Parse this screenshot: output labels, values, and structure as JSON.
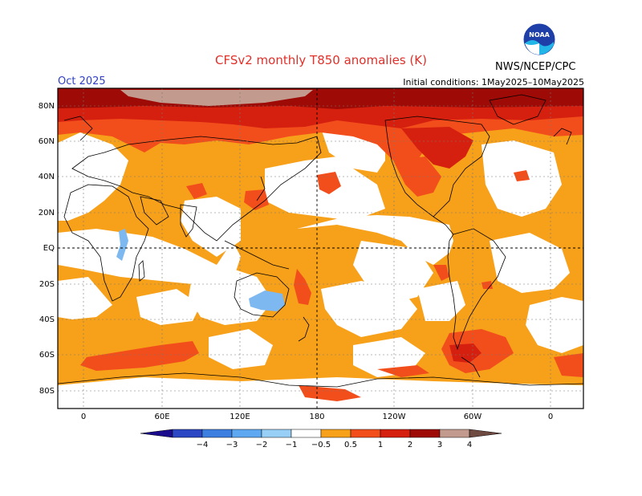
{
  "header": {
    "title": "CFSv2 monthly T850 anomalies (K)",
    "month": "Oct 2025",
    "initial_conditions": "Initial conditions: 1May2025–10May2025",
    "agency": "NWS/NCEP/CPC",
    "logo_text": "NOAA"
  },
  "map": {
    "lat_labels": [
      "80N",
      "60N",
      "40N",
      "20N",
      "EQ",
      "20S",
      "40S",
      "60S",
      "80S"
    ],
    "lon_labels": [
      "0",
      "60E",
      "120E",
      "180",
      "120W",
      "60W",
      "0"
    ]
  },
  "colorbar": {
    "labels": [
      "−4",
      "−3",
      "−2",
      "−1",
      "−0.5",
      "0.5",
      "1",
      "2",
      "3",
      "4"
    ],
    "colors": [
      "#1a0c8c",
      "#2b47c4",
      "#3d7fe0",
      "#5ea8f2",
      "#98cff6",
      "#ffffff",
      "#f7a01a",
      "#f24e1c",
      "#d6200f",
      "#9e0a05",
      "#c29b8e",
      "#6f4a40"
    ]
  },
  "colors": {
    "title": "#e0302a",
    "month": "#3040c0",
    "a05": "#f7a01a",
    "a1": "#f24e1c",
    "a2": "#d6200f",
    "a3": "#9e0a05",
    "a4": "#c29b8e",
    "neg": "#7eb8f0"
  }
}
